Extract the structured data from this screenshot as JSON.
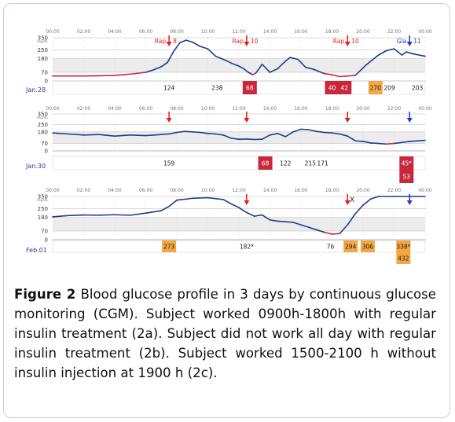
{
  "caption": {
    "label": "Figure 2",
    "text": "Blood glucose profile in 3 days by continuous glucose monitoring (CGM). Subject worked 0900h-1800h with regular insulin treatment (2a). Subject did not work all day with regular insulin treatment (2b). Subject worked 1500-2100 h without insulin injection at 1900 h (2c)."
  },
  "colors": {
    "trace": "#1f3c88",
    "low_trace": "#c8283c",
    "target_band": "#ececec",
    "marker_red": "#e02020",
    "marker_blue": "#1f3cc8",
    "box_red": "#c8283c",
    "box_orange": "#f4a641",
    "date": "#2a3c9a"
  },
  "chart_data": [
    {
      "type": "line",
      "date_label": "Jan.28",
      "x_ticks": [
        "00:00",
        "02:00",
        "04:00",
        "06:00",
        "08:00",
        "10:00",
        "12:00",
        "14:00",
        "16:00",
        "18:00",
        "20:00",
        "22:00",
        "00:00"
      ],
      "y_ticks": [
        "350",
        "250",
        "180",
        "70",
        "0"
      ],
      "y_unit": "mg/dL",
      "ylim": [
        0,
        350
      ],
      "target_range": [
        70,
        180
      ],
      "series": [
        {
          "points": [
            [
              0,
              40
            ],
            [
              1,
              40
            ],
            [
              2,
              40
            ],
            [
              3,
              42
            ],
            [
              4,
              45
            ],
            [
              5,
              55
            ],
            [
              6,
              70
            ],
            [
              6.5,
              90
            ],
            [
              7,
              115
            ],
            [
              7.4,
              150
            ],
            [
              7.8,
              240
            ],
            [
              8.2,
              310
            ],
            [
              8.6,
              330
            ],
            [
              9,
              315
            ],
            [
              9.5,
              280
            ],
            [
              10,
              260
            ],
            [
              10.5,
              200
            ],
            [
              11,
              175
            ],
            [
              11.5,
              145
            ],
            [
              12,
              120
            ],
            [
              12.3,
              100
            ],
            [
              12.6,
              70
            ],
            [
              12.9,
              50
            ],
            [
              13.1,
              65
            ],
            [
              13.5,
              135
            ],
            [
              14,
              70
            ],
            [
              14.5,
              100
            ],
            [
              15,
              160
            ],
            [
              15.3,
              190
            ],
            [
              15.8,
              175
            ],
            [
              16.3,
              110
            ],
            [
              16.8,
              95
            ],
            [
              17.5,
              60
            ],
            [
              18,
              50
            ],
            [
              18.5,
              35
            ],
            [
              19,
              40
            ],
            [
              19.5,
              45
            ],
            [
              20.2,
              130
            ],
            [
              20.6,
              170
            ],
            [
              21,
              210
            ],
            [
              21.5,
              245
            ],
            [
              22,
              260
            ],
            [
              22.5,
              210
            ],
            [
              22.8,
              235
            ],
            [
              23.2,
              220
            ],
            [
              24,
              200
            ]
          ]
        }
      ],
      "markers": [
        {
          "x": 7.5,
          "label": "Rap",
          "dose": "8",
          "color": "red"
        },
        {
          "x": 12.5,
          "label": "Rap",
          "dose": "10",
          "color": "red"
        },
        {
          "x": 19.0,
          "label": "Rap",
          "dose": "10",
          "color": "red"
        },
        {
          "x": 23.0,
          "label": "Gla",
          "dose": "11",
          "color": "blue"
        }
      ],
      "readings": [
        {
          "x": 7.5,
          "value": "124",
          "style": "plain"
        },
        {
          "x": 10.6,
          "value": "238",
          "style": "plain"
        },
        {
          "x": 12.7,
          "value": "68",
          "style": "red"
        },
        {
          "x": 18.0,
          "value": "40",
          "style": "red"
        },
        {
          "x": 18.8,
          "value": "42",
          "style": "red"
        },
        {
          "x": 20.8,
          "value": "270",
          "style": "orange"
        },
        {
          "x": 21.7,
          "value": "209",
          "style": "plain"
        },
        {
          "x": 23.5,
          "value": "203",
          "style": "plain"
        }
      ]
    },
    {
      "type": "line",
      "date_label": "Jan.30",
      "x_ticks": [
        "00:00",
        "02:00",
        "04:00",
        "06:00",
        "08:00",
        "10:00",
        "12:00",
        "14:00",
        "16:00",
        "18:00",
        "20:00",
        "22:00",
        "00:00"
      ],
      "y_ticks": [
        "350",
        "250",
        "180",
        "70",
        "0"
      ],
      "y_unit": "mg/dL",
      "ylim": [
        0,
        350
      ],
      "target_range": [
        70,
        180
      ],
      "series": [
        {
          "points": [
            [
              0,
              170
            ],
            [
              1,
              160
            ],
            [
              2,
              150
            ],
            [
              3,
              155
            ],
            [
              4,
              140
            ],
            [
              5,
              150
            ],
            [
              6,
              145
            ],
            [
              7,
              155
            ],
            [
              7.5,
              160
            ],
            [
              8,
              175
            ],
            [
              8.5,
              185
            ],
            [
              9,
              180
            ],
            [
              9.5,
              175
            ],
            [
              10,
              165
            ],
            [
              10.5,
              160
            ],
            [
              11,
              150
            ],
            [
              11.5,
              120
            ],
            [
              12,
              110
            ],
            [
              12.5,
              112
            ],
            [
              13,
              108
            ],
            [
              13.5,
              110
            ],
            [
              14,
              150
            ],
            [
              14.5,
              165
            ],
            [
              15,
              135
            ],
            [
              15.5,
              180
            ],
            [
              16,
              205
            ],
            [
              16.5,
              200
            ],
            [
              17,
              185
            ],
            [
              17.5,
              175
            ],
            [
              18,
              170
            ],
            [
              18.5,
              160
            ],
            [
              19,
              140
            ],
            [
              19.5,
              95
            ],
            [
              20,
              90
            ],
            [
              20.5,
              75
            ],
            [
              21,
              70
            ],
            [
              21.5,
              65
            ],
            [
              22,
              70
            ],
            [
              22.5,
              80
            ],
            [
              23,
              90
            ],
            [
              24,
              100
            ]
          ]
        }
      ],
      "markers": [
        {
          "x": 7.5,
          "label": "",
          "dose": "",
          "color": "red"
        },
        {
          "x": 12.5,
          "label": "",
          "dose": "",
          "color": "red"
        },
        {
          "x": 19.0,
          "label": "",
          "dose": "",
          "color": "red"
        },
        {
          "x": 23.0,
          "label": "",
          "dose": "",
          "color": "blue"
        }
      ],
      "readings": [
        {
          "x": 7.5,
          "value": "159",
          "style": "plain"
        },
        {
          "x": 13.7,
          "value": "68",
          "style": "red"
        },
        {
          "x": 15.0,
          "value": "122",
          "style": "plain"
        },
        {
          "x": 16.6,
          "value": "215",
          "style": "plain"
        },
        {
          "x": 17.4,
          "value": "171",
          "style": "plain"
        },
        {
          "x": 22.8,
          "value": "45*",
          "style": "red"
        },
        {
          "x": 22.8,
          "value": "53",
          "style": "red",
          "row": 2
        }
      ]
    },
    {
      "type": "line",
      "date_label": "Feb.01",
      "x_ticks": [
        "00:00",
        "02:00",
        "04:00",
        "06:00",
        "08:00",
        "10:00",
        "12:00",
        "14:00",
        "16:00",
        "18:00",
        "20:00",
        "22:00",
        "00:00"
      ],
      "y_ticks": [
        "350",
        "250",
        "180",
        "70",
        "0"
      ],
      "y_unit": "mg/dL",
      "ylim": [
        0,
        350
      ],
      "target_range": [
        70,
        180
      ],
      "series": [
        {
          "points": [
            [
              0,
              185
            ],
            [
              1,
              195
            ],
            [
              2,
              200
            ],
            [
              3,
              198
            ],
            [
              4,
              202
            ],
            [
              5,
              198
            ],
            [
              6,
              215
            ],
            [
              7,
              235
            ],
            [
              7.5,
              270
            ],
            [
              8,
              320
            ],
            [
              9,
              335
            ],
            [
              10,
              340
            ],
            [
              11,
              325
            ],
            [
              11.5,
              290
            ],
            [
              12,
              260
            ],
            [
              12.5,
              220
            ],
            [
              13,
              190
            ],
            [
              13.5,
              200
            ],
            [
              14,
              160
            ],
            [
              14.5,
              150
            ],
            [
              15,
              145
            ],
            [
              15.5,
              140
            ],
            [
              16,
              120
            ],
            [
              16.5,
              100
            ],
            [
              17,
              80
            ],
            [
              17.5,
              60
            ],
            [
              18,
              45
            ],
            [
              18.5,
              50
            ],
            [
              19,
              120
            ],
            [
              19.5,
              210
            ],
            [
              20,
              280
            ],
            [
              20.5,
              330
            ],
            [
              21,
              350
            ],
            [
              22,
              350
            ],
            [
              23,
              350
            ],
            [
              24,
              350
            ]
          ]
        }
      ],
      "markers": [
        {
          "x": 12.5,
          "label": "",
          "dose": "",
          "color": "red"
        },
        {
          "x": 19.0,
          "label": "",
          "dose": "",
          "color": "red"
        },
        {
          "x": 23.0,
          "label": "",
          "dose": "",
          "color": "blue"
        }
      ],
      "annotations": [
        {
          "x": 19.6,
          "text": "X"
        }
      ],
      "readings": [
        {
          "x": 7.5,
          "value": "273",
          "style": "orange"
        },
        {
          "x": 12.5,
          "value": "182*",
          "style": "plain"
        },
        {
          "x": 17.9,
          "value": "76",
          "style": "plain"
        },
        {
          "x": 19.2,
          "value": "294",
          "style": "orange"
        },
        {
          "x": 20.3,
          "value": "306",
          "style": "orange"
        },
        {
          "x": 22.6,
          "value": "338*",
          "style": "orange"
        },
        {
          "x": 22.6,
          "value": "432",
          "style": "orange",
          "row": 2
        }
      ]
    }
  ]
}
